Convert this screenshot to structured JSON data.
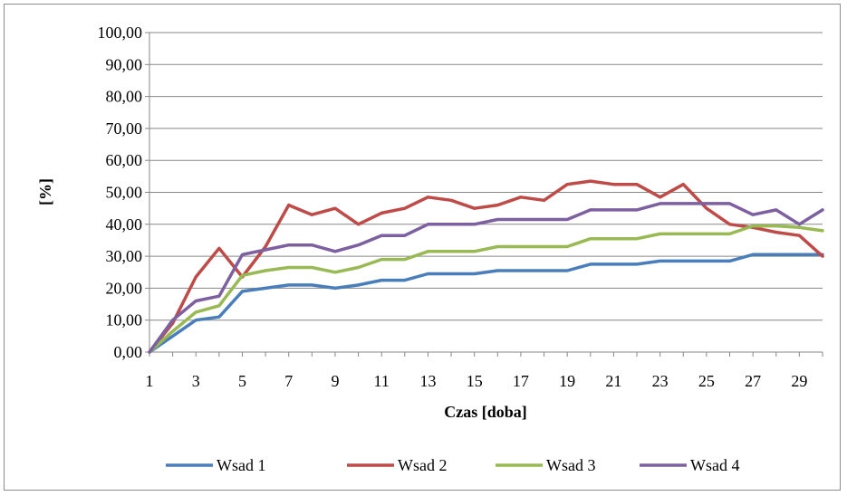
{
  "chart_data": {
    "type": "line",
    "title": "",
    "xlabel": "Czas [doba]",
    "ylabel": "[%]",
    "x": [
      1,
      2,
      3,
      4,
      5,
      6,
      7,
      8,
      9,
      10,
      11,
      12,
      13,
      14,
      15,
      16,
      17,
      18,
      19,
      20,
      21,
      22,
      23,
      24,
      25,
      26,
      27,
      28,
      29,
      30
    ],
    "x_tick_labels": [
      "1",
      "3",
      "5",
      "7",
      "9",
      "11",
      "13",
      "15",
      "17",
      "19",
      "21",
      "23",
      "25",
      "27",
      "29"
    ],
    "y_tick_labels": [
      "0,00",
      "10,00",
      "20,00",
      "30,00",
      "40,00",
      "50,00",
      "60,00",
      "70,00",
      "80,00",
      "90,00",
      "100,00"
    ],
    "ylim": [
      0,
      100
    ],
    "grid": "horizontal",
    "legend_position": "bottom",
    "series": [
      {
        "name": "Wsad 1",
        "color": "#4a7ebb",
        "values": [
          0,
          5,
          10,
          11,
          19,
          20,
          21,
          21,
          20,
          21,
          22.5,
          22.5,
          24.5,
          24.5,
          24.5,
          25.5,
          25.5,
          25.5,
          25.5,
          27.5,
          27.5,
          27.5,
          28.5,
          28.5,
          28.5,
          28.5,
          30.5,
          30.5,
          30.5,
          30.5
        ]
      },
      {
        "name": "Wsad 2",
        "color": "#be4b48",
        "values": [
          0,
          9,
          23.5,
          32.5,
          23.5,
          33,
          46,
          43,
          45,
          40,
          43.5,
          45,
          48.5,
          47.5,
          45,
          46,
          48.5,
          47.5,
          52.5,
          53.5,
          52.5,
          52.5,
          48.5,
          52.5,
          45,
          40,
          39,
          37.5,
          36.5,
          30
        ]
      },
      {
        "name": "Wsad 3",
        "color": "#98b954",
        "values": [
          0,
          6.5,
          12.5,
          14.5,
          24,
          25.5,
          26.5,
          26.5,
          25,
          26.5,
          29,
          29,
          31.5,
          31.5,
          31.5,
          33,
          33,
          33,
          33,
          35.5,
          35.5,
          35.5,
          37,
          37,
          37,
          37,
          39.5,
          39.5,
          39,
          38
        ]
      },
      {
        "name": "Wsad 4",
        "color": "#7d60a0",
        "values": [
          0,
          10,
          16,
          17.5,
          30.5,
          32,
          33.5,
          33.5,
          31.5,
          33.5,
          36.5,
          36.5,
          40,
          40,
          40,
          41.5,
          41.5,
          41.5,
          41.5,
          44.5,
          44.5,
          44.5,
          46.5,
          46.5,
          46.5,
          46.5,
          43,
          44.5,
          40,
          44.5
        ]
      }
    ]
  }
}
